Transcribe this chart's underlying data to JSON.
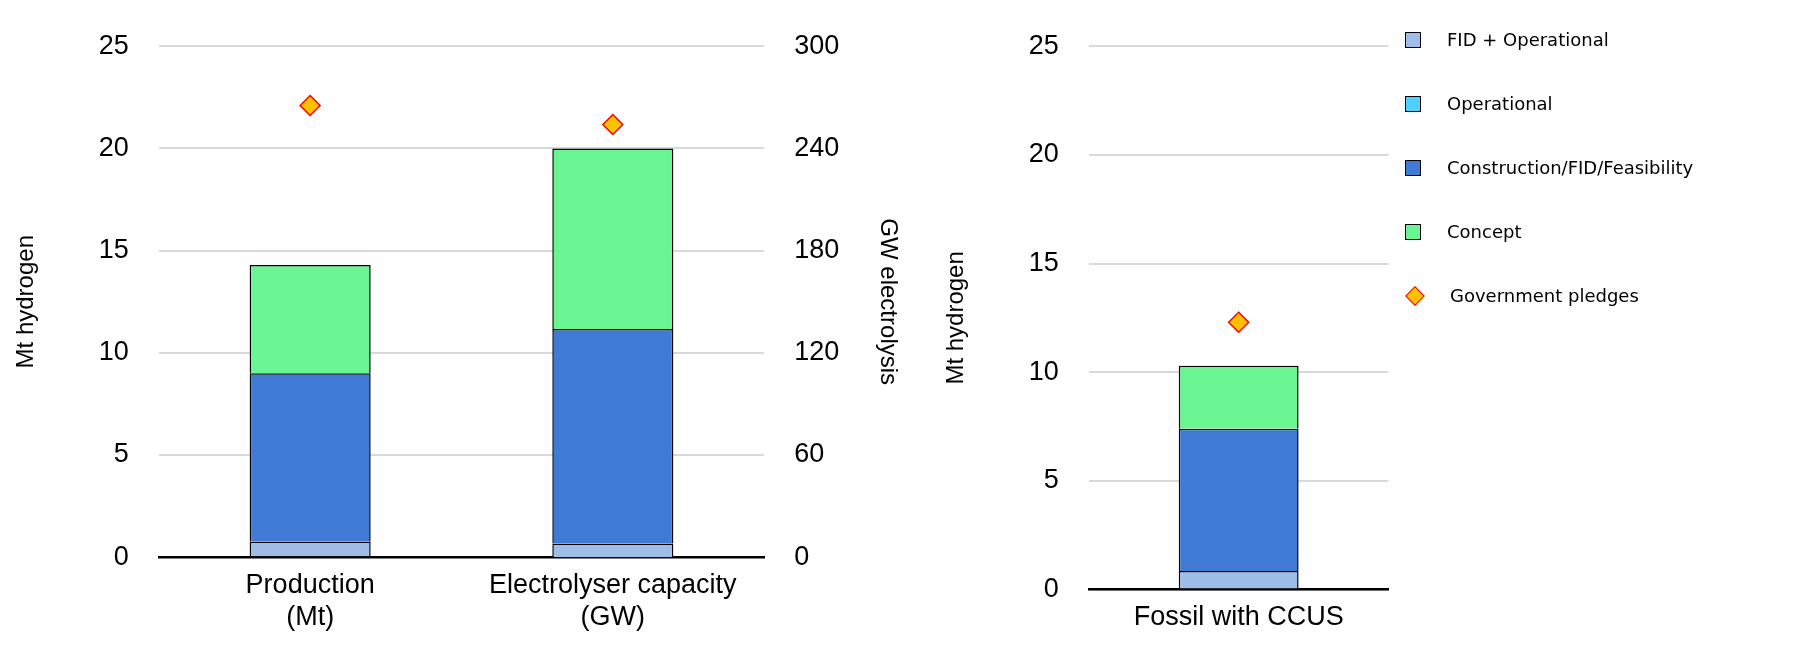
{
  "chart_data": [
    {
      "type": "bar",
      "stacked": true,
      "ylabel": "Mt hydrogen",
      "y2label": "GW electrolysis",
      "categories": [
        "Production\n(Mt)",
        "Electrolyser capacity\n(GW)"
      ],
      "ylim": [
        0,
        25
      ],
      "yticks": [
        0,
        5,
        10,
        15,
        20,
        25
      ],
      "y2lim": [
        0,
        300
      ],
      "y2ticks": [
        0,
        60,
        120,
        180,
        240,
        300
      ],
      "grid": "y",
      "series": [
        {
          "color": "#9ebde9",
          "values": [
            0.75,
            null
          ]
        },
        {
          "color": "#3f7bd4",
          "values": [
            8.25,
            null
          ]
        },
        {
          "color": "#69f591",
          "values": [
            5.3,
            null
          ]
        },
        {
          "type": "scatter",
          "marker": "diamond",
          "color": "#ffc000",
          "x": [
            "Production\n(Mt)"
          ],
          "values": [
            22.1
          ]
        },
        {
          "axis": "y2",
          "color": "#9ebde9",
          "values": [
            null,
            8
          ]
        },
        {
          "axis": "y2",
          "color": "#3f7bd4",
          "values": [
            null,
            126
          ]
        },
        {
          "axis": "y2",
          "color": "#69f591",
          "values": [
            null,
            106
          ]
        },
        {
          "axis": "y2",
          "type": "scatter",
          "marker": "diamond",
          "color": "#ffc000",
          "x": [
            "Electrolyser capacity\n(GW)"
          ],
          "values": [
            254
          ]
        }
      ]
    },
    {
      "type": "bar",
      "stacked": true,
      "ylabel": "Mt hydrogen",
      "categories": [
        "Fossil with CCUS"
      ],
      "ylim": [
        0,
        25
      ],
      "yticks": [
        0,
        5,
        10,
        15,
        20,
        25
      ],
      "grid": "y",
      "legend": "right",
      "series": [
        {
          "name": "FID + Operational",
          "color": "#9ebde9",
          "values": [
            0.85
          ]
        },
        {
          "name": "Operational",
          "color": "#4dd2ff",
          "values": [
            null
          ]
        },
        {
          "name": "Construction/FID/Feasibility",
          "color": "#3f7bd4",
          "values": [
            6.55
          ]
        },
        {
          "name": "Concept",
          "color": "#69f591",
          "values": [
            2.9
          ]
        },
        {
          "name": "Government pledges",
          "type": "scatter",
          "marker": "diamond",
          "color": "#ffc000",
          "x": [
            "Fossil with CCUS"
          ],
          "values": [
            12.3
          ]
        }
      ]
    }
  ]
}
